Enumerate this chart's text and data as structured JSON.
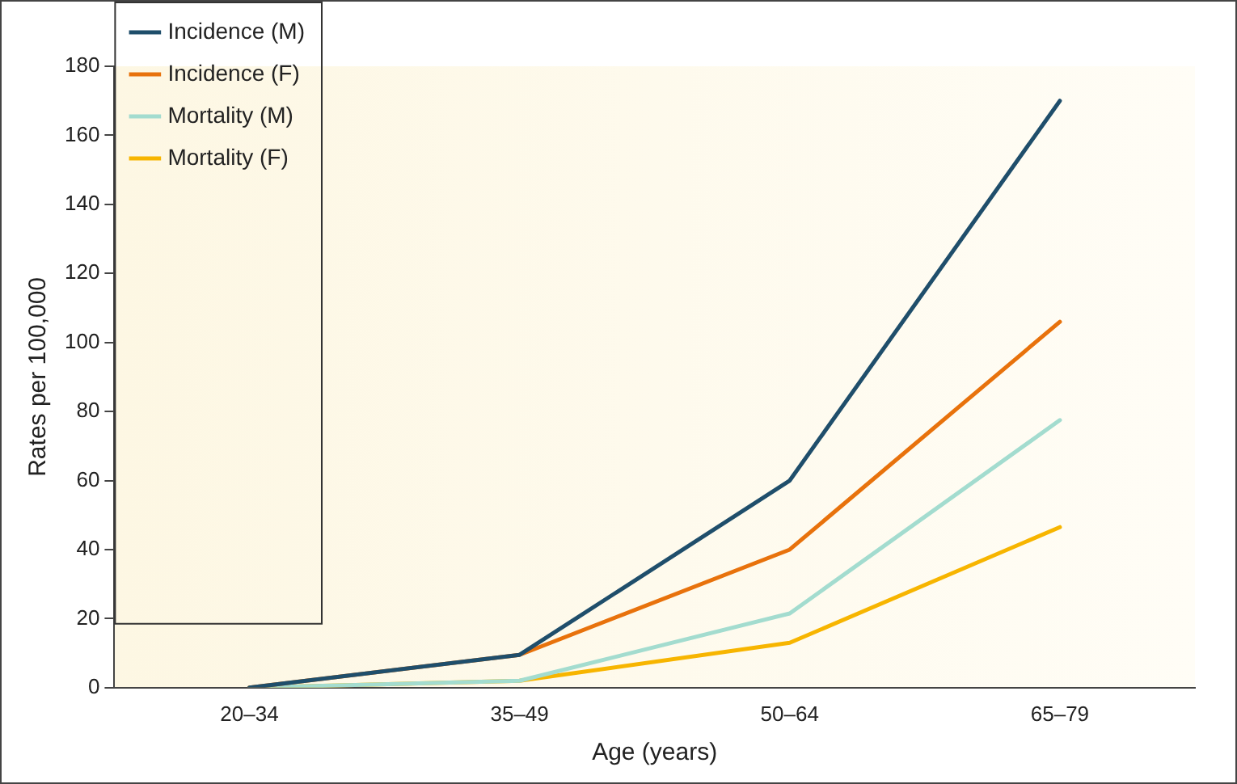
{
  "chart_data": {
    "type": "line",
    "xlabel": "Age (years)",
    "ylabel": "Rates per 100,000",
    "categories": [
      "20–34",
      "35–49",
      "50–64",
      "65–79"
    ],
    "series": [
      {
        "name": "Incidence (M)",
        "color": "#1f4e6b",
        "values": [
          0,
          9.5,
          60,
          170
        ]
      },
      {
        "name": "Incidence (F)",
        "color": "#e8720c",
        "values": [
          0,
          9.5,
          40,
          106
        ]
      },
      {
        "name": "Mortality (M)",
        "color": "#a3dccf",
        "values": [
          0,
          2,
          21.5,
          77.5
        ]
      },
      {
        "name": "Mortality (F)",
        "color": "#f7b500",
        "values": [
          0,
          2,
          13,
          46.5
        ]
      }
    ],
    "ylim": [
      0,
      180
    ],
    "yticks": [
      0,
      20,
      40,
      60,
      80,
      100,
      120,
      140,
      160,
      180
    ],
    "grid": false,
    "legend": "top left",
    "marker": "none",
    "line_style": "solid"
  }
}
